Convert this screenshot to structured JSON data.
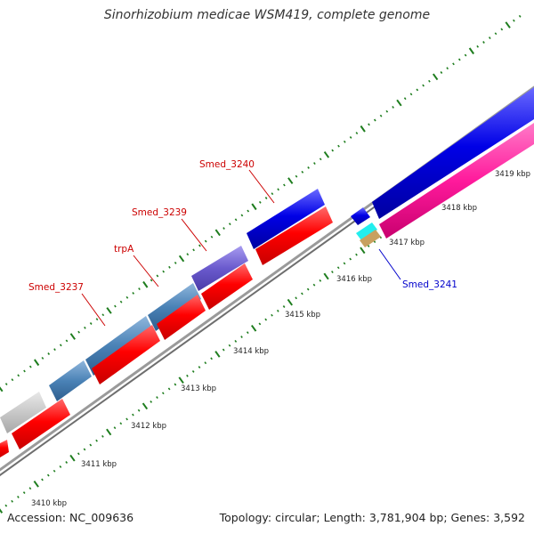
{
  "title": "Sinorhizobium medicae WSM419, complete genome",
  "footer": {
    "accession": "Accession: NC_009636",
    "summary": "Topology: circular; Length: 3,781,904 bp; Genes: 3,592"
  },
  "ticks": [
    "3410 kbp",
    "3411 kbp",
    "3412 kbp",
    "3413 kbp",
    "3414 kbp",
    "3415 kbp",
    "3416 kbp",
    "3417 kbp",
    "3418 kbp",
    "3419 kbp"
  ],
  "gene_labels": [
    {
      "name": "Smed_3237",
      "color": "#cc0000"
    },
    {
      "name": "trpA",
      "color": "#cc0000"
    },
    {
      "name": "Smed_3239",
      "color": "#cc0000"
    },
    {
      "name": "Smed_3240",
      "color": "#cc0000"
    },
    {
      "name": "Smed_3241",
      "color": "#0000cc"
    }
  ],
  "colors": {
    "cds": "#ff0000",
    "feature_blue": "#0000e6",
    "feature_steelblue": "#4a82b6",
    "feature_purple": "#6a5acd",
    "feature_grey": "#c8c8c8",
    "feature_pink": "#ff1a9c",
    "feature_cyan": "#22eeee",
    "feature_tan": "#c8a060",
    "backbone": "#9a9a9a",
    "tick_green": "#1e7d1e"
  }
}
